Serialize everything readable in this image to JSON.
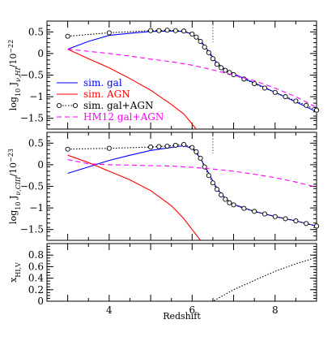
{
  "chart_data": [
    {
      "type": "line",
      "panel": "top",
      "ylabel_prefix": "log",
      "ylabel_sub1": "10",
      "ylabel_mid": " J",
      "ylabel_sub2": "ν,HI",
      "ylabel_suffix": "/10",
      "ylabel_exp": "−22",
      "xlim": [
        2.5,
        9
      ],
      "ylim": [
        -1.75,
        0.75
      ],
      "yticks": [
        "0.5",
        "0",
        "−0.5",
        "−1",
        "−1.5"
      ],
      "ytick_values": [
        0.5,
        0,
        -0.5,
        -1,
        -1.5
      ],
      "grid": false,
      "legend_placement": "bottom-left",
      "vline_x": 6.5,
      "series": [
        {
          "name": "sim. gal",
          "color": "#0000ff",
          "style": "solid",
          "points": [
            [
              3,
              0.1
            ],
            [
              3.5,
              0.28
            ],
            [
              4,
              0.42
            ],
            [
              4.5,
              0.47
            ],
            [
              5,
              0.51
            ],
            [
              5.5,
              0.52
            ],
            [
              5.8,
              0.51
            ],
            [
              6.0,
              0.45
            ],
            [
              6.2,
              0.3
            ],
            [
              6.4,
              0.05
            ],
            [
              6.6,
              -0.22
            ],
            [
              6.8,
              -0.37
            ],
            [
              7.0,
              -0.47
            ],
            [
              7.5,
              -0.68
            ],
            [
              8.0,
              -0.9
            ],
            [
              8.5,
              -1.12
            ],
            [
              9.0,
              -1.35
            ]
          ]
        },
        {
          "name": "sim. AGN",
          "color": "#ff0000",
          "style": "solid",
          "points": [
            [
              3,
              0.1
            ],
            [
              3.5,
              -0.12
            ],
            [
              4,
              -0.33
            ],
            [
              4.5,
              -0.58
            ],
            [
              5,
              -0.85
            ],
            [
              5.5,
              -1.18
            ],
            [
              5.8,
              -1.4
            ],
            [
              6.1,
              -1.75
            ]
          ]
        },
        {
          "name": "sim. gal+AGN",
          "color": "#000000",
          "style": "dotted-circles",
          "points": [
            [
              3,
              0.4
            ],
            [
              4,
              0.48
            ],
            [
              5,
              0.53
            ],
            [
              5.2,
              0.53
            ],
            [
              5.4,
              0.54
            ],
            [
              5.6,
              0.53
            ],
            [
              5.8,
              0.52
            ],
            [
              6.0,
              0.45
            ],
            [
              6.1,
              0.38
            ],
            [
              6.2,
              0.28
            ],
            [
              6.3,
              0.15
            ],
            [
              6.4,
              0.02
            ],
            [
              6.5,
              -0.12
            ],
            [
              6.6,
              -0.25
            ],
            [
              6.7,
              -0.33
            ],
            [
              6.8,
              -0.39
            ],
            [
              6.9,
              -0.44
            ],
            [
              7.0,
              -0.49
            ],
            [
              7.25,
              -0.59
            ],
            [
              7.5,
              -0.7
            ],
            [
              7.75,
              -0.8
            ],
            [
              8.0,
              -0.9
            ],
            [
              8.25,
              -1.0
            ],
            [
              8.5,
              -1.1
            ],
            [
              8.75,
              -1.2
            ],
            [
              9.0,
              -1.31
            ]
          ]
        },
        {
          "name": "HM12 gal+AGN",
          "color": "#ff00ff",
          "style": "dashed",
          "points": [
            [
              3,
              0.1
            ],
            [
              3.5,
              0.05
            ],
            [
              4,
              0.0
            ],
            [
              4.5,
              -0.06
            ],
            [
              5,
              -0.13
            ],
            [
              5.5,
              -0.19
            ],
            [
              6,
              -0.27
            ],
            [
              6.5,
              -0.38
            ],
            [
              7,
              -0.5
            ],
            [
              7.5,
              -0.63
            ],
            [
              8,
              -0.8
            ],
            [
              8.5,
              -1.0
            ],
            [
              9,
              -1.25
            ]
          ]
        }
      ],
      "marker_x": [
        3,
        4,
        5,
        5.2,
        5.4,
        5.6,
        5.8,
        6.0,
        6.1,
        6.2,
        6.3,
        6.4,
        6.5,
        6.6,
        6.7,
        6.8,
        6.9,
        7.0,
        7.25,
        7.5,
        7.75,
        8.0,
        8.25,
        8.5,
        8.75,
        9.0
      ]
    },
    {
      "type": "line",
      "panel": "middle",
      "ylabel_prefix": "log",
      "ylabel_sub1": "10",
      "ylabel_mid": " J",
      "ylabel_sub2": "ν,CIII",
      "ylabel_suffix": "/10",
      "ylabel_exp": "−23",
      "xlim": [
        2.5,
        9
      ],
      "ylim": [
        -1.75,
        0.75
      ],
      "yticks": [
        "0.5",
        "0",
        "−0.5",
        "−1",
        "−1.5"
      ],
      "ytick_values": [
        0.5,
        0,
        -0.5,
        -1,
        -1.5
      ],
      "grid": false,
      "vline_x": 6.5,
      "series": [
        {
          "color": "#0000ff",
          "style": "solid",
          "points": [
            [
              3,
              -0.2
            ],
            [
              3.5,
              -0.05
            ],
            [
              4,
              0.1
            ],
            [
              4.5,
              0.22
            ],
            [
              5,
              0.33
            ],
            [
              5.5,
              0.4
            ],
            [
              5.8,
              0.44
            ],
            [
              6.0,
              0.38
            ],
            [
              6.2,
              0.15
            ],
            [
              6.4,
              -0.2
            ],
            [
              6.6,
              -0.55
            ],
            [
              6.8,
              -0.78
            ],
            [
              7.0,
              -0.92
            ],
            [
              7.5,
              -1.08
            ],
            [
              8.0,
              -1.2
            ],
            [
              8.5,
              -1.3
            ],
            [
              9.0,
              -1.42
            ]
          ]
        },
        {
          "color": "#ff0000",
          "style": "solid",
          "points": [
            [
              3,
              0.22
            ],
            [
              3.5,
              0.05
            ],
            [
              4,
              -0.15
            ],
            [
              4.5,
              -0.35
            ],
            [
              5,
              -0.6
            ],
            [
              5.5,
              -0.95
            ],
            [
              5.8,
              -1.25
            ],
            [
              6.0,
              -1.5
            ],
            [
              6.2,
              -1.75
            ]
          ]
        },
        {
          "color": "#000000",
          "style": "dotted-circles",
          "points": [
            [
              3,
              0.36
            ],
            [
              4,
              0.38
            ],
            [
              5,
              0.41
            ],
            [
              5.2,
              0.42
            ],
            [
              5.4,
              0.43
            ],
            [
              5.6,
              0.45
            ],
            [
              5.8,
              0.47
            ],
            [
              6.0,
              0.4
            ],
            [
              6.1,
              0.3
            ],
            [
              6.2,
              0.15
            ],
            [
              6.3,
              -0.05
            ],
            [
              6.4,
              -0.25
            ],
            [
              6.5,
              -0.42
            ],
            [
              6.6,
              -0.57
            ],
            [
              6.7,
              -0.7
            ],
            [
              6.8,
              -0.8
            ],
            [
              6.9,
              -0.88
            ],
            [
              7.0,
              -0.93
            ],
            [
              7.25,
              -1.01
            ],
            [
              7.5,
              -1.08
            ],
            [
              7.75,
              -1.14
            ],
            [
              8.0,
              -1.2
            ],
            [
              8.25,
              -1.25
            ],
            [
              8.5,
              -1.3
            ],
            [
              8.75,
              -1.36
            ],
            [
              9.0,
              -1.42
            ]
          ]
        },
        {
          "color": "#ff00ff",
          "style": "dashed",
          "points": [
            [
              3,
              0.12
            ],
            [
              3.5,
              0.02
            ],
            [
              4,
              0.0
            ],
            [
              4.5,
              -0.01
            ],
            [
              5,
              -0.02
            ],
            [
              5.5,
              -0.03
            ],
            [
              6,
              -0.06
            ],
            [
              6.5,
              -0.1
            ],
            [
              7,
              -0.15
            ],
            [
              7.5,
              -0.22
            ],
            [
              8,
              -0.3
            ],
            [
              8.5,
              -0.4
            ],
            [
              9,
              -0.52
            ]
          ]
        }
      ],
      "marker_x": [
        3,
        4,
        5,
        5.2,
        5.4,
        5.6,
        5.8,
        6.0,
        6.1,
        6.2,
        6.3,
        6.4,
        6.5,
        6.6,
        6.7,
        6.8,
        6.9,
        7.0,
        7.25,
        7.5,
        7.75,
        8.0,
        8.25,
        8.5,
        8.75,
        9.0
      ]
    },
    {
      "type": "line",
      "panel": "bottom",
      "ylabel_main": "x",
      "ylabel_sub": "HI,V",
      "xlabel": "Redshift",
      "xlim": [
        2.5,
        9
      ],
      "ylim": [
        0,
        1
      ],
      "xticks": [
        "4",
        "6",
        "8"
      ],
      "xtick_values": [
        4,
        6,
        8
      ],
      "yticks": [
        "0",
        "0.2",
        "0.4",
        "0.6",
        "0.8"
      ],
      "ytick_values": [
        0,
        0.2,
        0.4,
        0.6,
        0.8
      ],
      "grid": false,
      "series": [
        {
          "color": "#000000",
          "style": "dotted",
          "points": [
            [
              2.5,
              0.0
            ],
            [
              6.5,
              0.0
            ],
            [
              6.7,
              0.08
            ],
            [
              7.0,
              0.2
            ],
            [
              7.5,
              0.36
            ],
            [
              8.0,
              0.52
            ],
            [
              8.5,
              0.65
            ],
            [
              9.0,
              0.76
            ]
          ]
        }
      ]
    }
  ]
}
